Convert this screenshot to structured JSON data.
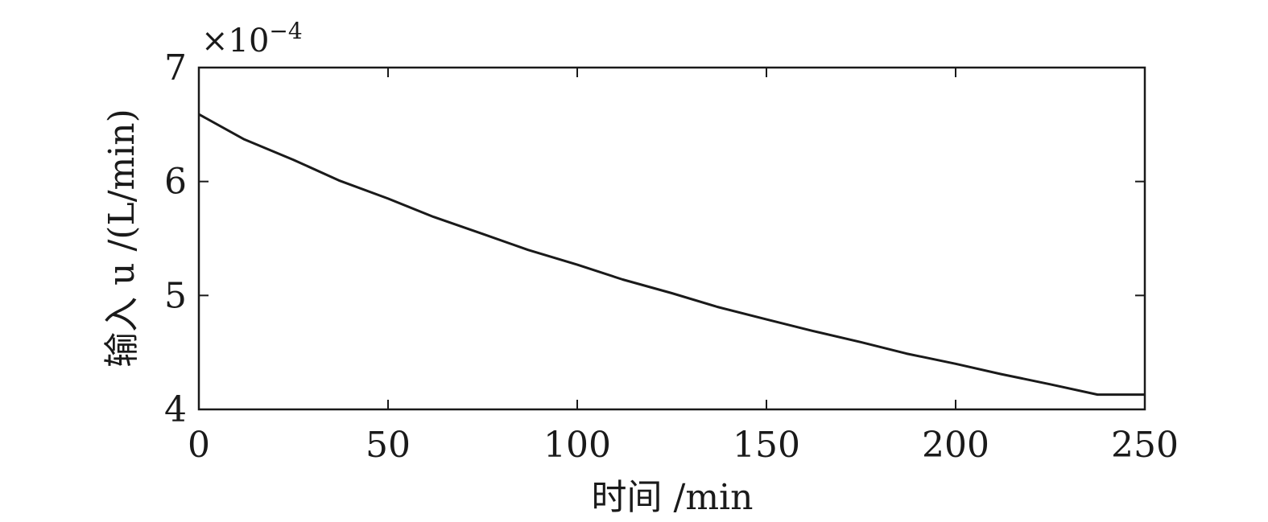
{
  "chart_data": {
    "type": "line",
    "xlabel": "时间  /min",
    "ylabel": "输入 u /(L/min)",
    "xlim": [
      0,
      250
    ],
    "ylim": [
      4,
      7
    ],
    "x_ticks": [
      0,
      50,
      100,
      150,
      200,
      250
    ],
    "y_ticks": [
      4,
      5,
      6,
      7
    ],
    "x_tick_labels": [
      "0",
      "50",
      "100",
      "150",
      "200",
      "250"
    ],
    "y_tick_labels": [
      "4",
      "5",
      "6",
      "7"
    ],
    "y_multiplier_base": "×10",
    "y_multiplier_exponent": "−4",
    "grid": false,
    "series": [
      {
        "color": "#1a1a1a",
        "x": [
          0,
          12,
          25,
          37,
          50,
          62,
          75,
          87,
          100,
          112,
          125,
          137,
          150,
          162,
          175,
          187,
          200,
          212,
          225,
          237.5,
          238,
          250
        ],
        "y": [
          6.59,
          6.37,
          6.19,
          6.01,
          5.85,
          5.69,
          5.54,
          5.4,
          5.27,
          5.14,
          5.02,
          4.9,
          4.79,
          4.69,
          4.59,
          4.49,
          4.4,
          4.31,
          4.22,
          4.13,
          4.13,
          4.13
        ]
      }
    ]
  }
}
